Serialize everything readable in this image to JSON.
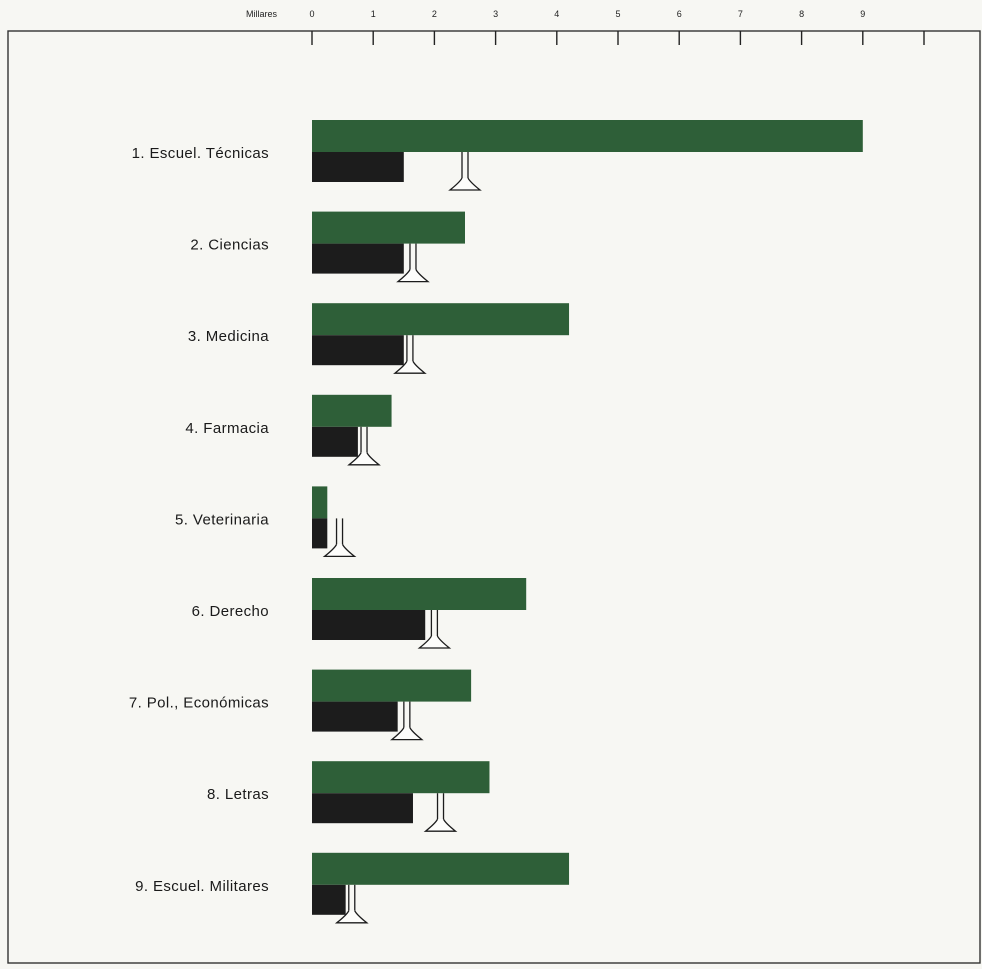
{
  "chart_data": {
    "type": "bar",
    "orientation": "horizontal",
    "axis_unit": "Millares",
    "x_ticks": [
      "0",
      "1",
      "2",
      "3",
      "4",
      "5",
      "6",
      "7",
      "8",
      "9"
    ],
    "xlim": [
      0,
      10
    ],
    "categories": [
      "1. Escuel. Técnicas",
      "2. Ciencias",
      "3. Medicina",
      "4. Farmacia",
      "5. Veterinaria",
      "6. Derecho",
      "7. Pol., Económicas",
      "8. Letras",
      "9. Escuel. Militares"
    ],
    "series": [
      {
        "values": [
          9.0,
          2.5,
          4.2,
          1.3,
          0.25,
          3.5,
          2.6,
          2.9,
          4.2
        ]
      },
      {
        "values": [
          1.5,
          1.5,
          1.5,
          0.75,
          0.25,
          1.85,
          1.4,
          1.65,
          0.55
        ]
      },
      {
        "values": [
          2.5,
          1.65,
          1.6,
          0.85,
          0.45,
          2.0,
          1.55,
          2.1,
          0.65
        ]
      }
    ],
    "series_styles": [
      "green bar",
      "black bar",
      "valve marker"
    ],
    "grid": false,
    "legend": "none",
    "colors": {
      "green": "#2e5f38",
      "black": "#1c1c1c",
      "background": "#f7f7f3",
      "axis": "#222222"
    }
  }
}
